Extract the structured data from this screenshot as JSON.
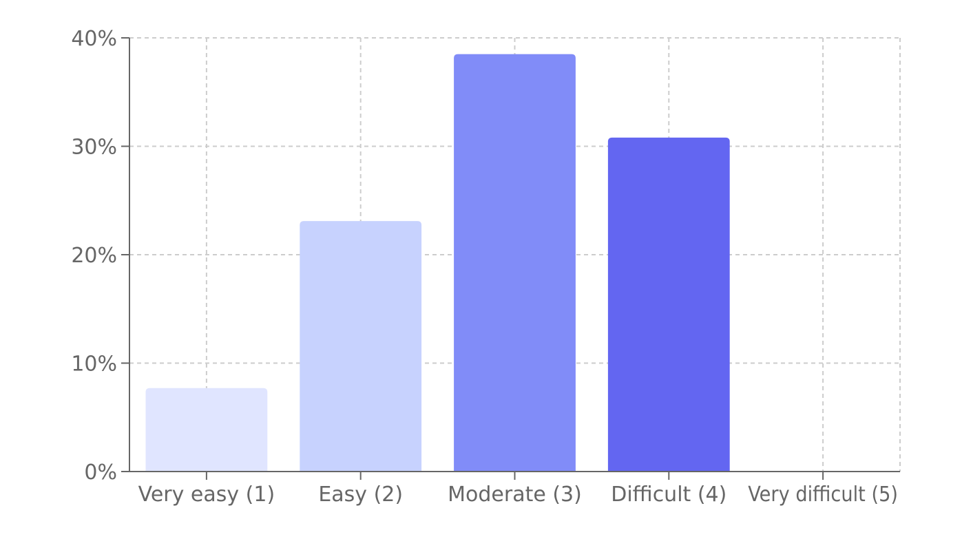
{
  "chart_data": {
    "type": "bar",
    "title": "",
    "xlabel": "",
    "ylabel": "",
    "categories": [
      "Very easy (1)",
      "Easy (2)",
      "Moderate (3)",
      "Difficult (4)",
      "Very difficult (5)"
    ],
    "values": [
      7.7,
      23.1,
      38.5,
      30.8,
      0
    ],
    "value_unit": "%",
    "ylim": [
      0,
      40
    ],
    "yticks": [
      "0%",
      "10%",
      "20%",
      "30%",
      "40%"
    ],
    "ytick_values": [
      0,
      10,
      20,
      30,
      40
    ],
    "grid": true,
    "legend": "none",
    "colors": [
      "#e0e5ff",
      "#c7d2fe",
      "#818cf8",
      "#6366f1",
      "#4f46e5"
    ],
    "grid_color": "#cccccc",
    "axis_color": "#666666"
  }
}
